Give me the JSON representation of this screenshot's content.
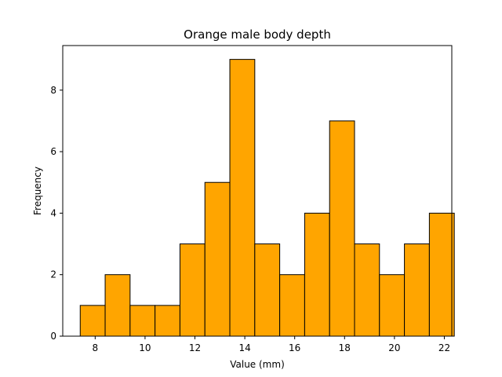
{
  "chart_data": {
    "type": "bar",
    "title": "Orange male body depth",
    "xlabel": "Value (mm)",
    "ylabel": "Frequency",
    "xlim": [
      6.7,
      22.3
    ],
    "ylim": [
      0,
      9.45
    ],
    "bin_edges": [
      7.4,
      8.4,
      9.4,
      10.4,
      11.4,
      12.4,
      13.4,
      14.4,
      15.4,
      16.4,
      17.4,
      18.4,
      19.4,
      20.4,
      21.4
    ],
    "bin_width": 1.0,
    "values": [
      1,
      2,
      1,
      1,
      3,
      5,
      9,
      3,
      2,
      4,
      7,
      3,
      2,
      3,
      4
    ],
    "xticks": [
      8,
      10,
      12,
      14,
      16,
      18,
      20,
      22
    ],
    "yticks": [
      0,
      2,
      4,
      6,
      8
    ],
    "bar_color": "#ffa500",
    "edge_color": "#000000"
  }
}
